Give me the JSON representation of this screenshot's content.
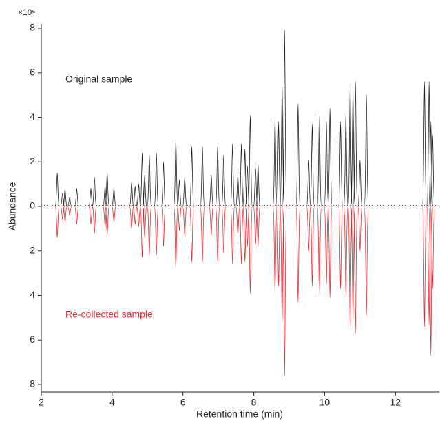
{
  "chart_data": {
    "type": "peaks",
    "multiplier": "×10⁶",
    "y_label": "Abundance",
    "x_label": "Retention time (min)",
    "xlim": [
      2,
      13.2
    ],
    "xticks": [
      2,
      4,
      6,
      8,
      10,
      12
    ],
    "ylim": [
      -8,
      8
    ],
    "yticks": [
      {
        "value": -8,
        "label": "8"
      },
      {
        "value": -6,
        "label": "6"
      },
      {
        "value": -4,
        "label": "4"
      },
      {
        "value": -2,
        "label": "2"
      },
      0,
      2,
      4,
      6,
      8
    ],
    "series": [
      {
        "name": "Original sample",
        "color": "#231f20",
        "x": [
          2.45,
          2.6,
          2.67,
          2.8,
          3.0,
          3.4,
          3.5,
          3.8,
          3.86,
          4.05,
          4.55,
          4.65,
          4.75,
          4.85,
          4.92,
          5.05,
          5.25,
          5.45,
          5.8,
          5.9,
          6.05,
          6.25,
          6.55,
          6.8,
          6.98,
          7.15,
          7.4,
          7.55,
          7.65,
          7.75,
          7.82,
          7.9,
          8.05,
          8.12,
          8.6,
          8.7,
          8.8,
          8.87,
          9.25,
          9.55,
          9.65,
          9.85,
          10.05,
          10.15,
          10.45,
          10.6,
          10.72,
          10.8,
          10.87,
          11.0,
          11.18,
          12.82,
          12.95,
          13.0,
          13.05
        ],
        "values": [
          1.5,
          0.6,
          0.8,
          0.4,
          0.8,
          0.8,
          1.3,
          0.9,
          1.5,
          0.8,
          1.1,
          0.9,
          1.0,
          2.4,
          1.4,
          2.3,
          2.4,
          2.0,
          3.0,
          1.2,
          1.3,
          2.7,
          2.7,
          1.4,
          2.7,
          2.3,
          2.8,
          1.4,
          2.8,
          2.6,
          1.8,
          4.1,
          1.7,
          1.9,
          4.0,
          3.8,
          5.5,
          7.9,
          4.6,
          2.1,
          3.7,
          4.2,
          3.8,
          4.4,
          3.8,
          4.2,
          5.5,
          5.2,
          5.6,
          2.1,
          5.0,
          5.6,
          5.6,
          3.8,
          3.2
        ]
      },
      {
        "name": "Re-collected sample",
        "color": "#e8262e",
        "x": [
          2.45,
          2.6,
          2.67,
          2.8,
          3.0,
          3.4,
          3.5,
          3.8,
          3.86,
          4.05,
          4.55,
          4.65,
          4.75,
          4.85,
          4.92,
          5.05,
          5.25,
          5.45,
          5.8,
          5.9,
          6.05,
          6.25,
          6.55,
          6.8,
          6.98,
          7.15,
          7.4,
          7.55,
          7.65,
          7.75,
          7.82,
          7.9,
          8.05,
          8.12,
          8.6,
          8.7,
          8.8,
          8.87,
          9.25,
          9.55,
          9.65,
          9.85,
          10.05,
          10.15,
          10.45,
          10.6,
          10.72,
          10.8,
          10.87,
          11.0,
          11.18,
          12.82,
          12.95,
          13.0,
          13.05
        ],
        "values": [
          -1.4,
          -0.6,
          -0.7,
          -0.4,
          -0.8,
          -0.8,
          -1.2,
          -0.9,
          -1.3,
          -0.7,
          -1.0,
          -0.8,
          -0.9,
          -2.3,
          -1.4,
          -2.2,
          -2.2,
          -1.8,
          -2.8,
          -1.1,
          -1.3,
          -2.5,
          -2.5,
          -1.3,
          -2.5,
          -2.1,
          -2.6,
          -1.3,
          -2.6,
          -2.5,
          -1.8,
          -3.9,
          -1.7,
          -1.8,
          -3.9,
          -3.6,
          -5.3,
          -7.6,
          -4.3,
          -2.0,
          -3.6,
          -4.0,
          -3.5,
          -4.1,
          -3.7,
          -4.0,
          -5.4,
          -5.0,
          -5.7,
          -2.0,
          -4.9,
          -5.4,
          -5.3,
          -6.7,
          -3.7
        ]
      }
    ]
  }
}
